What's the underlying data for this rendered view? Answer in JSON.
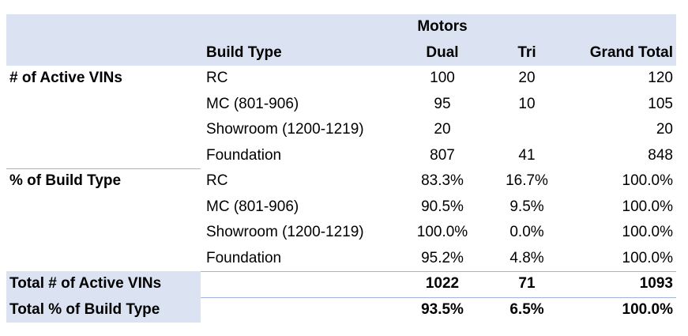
{
  "header": {
    "motors_label": "Motors",
    "build_type_label": "Build Type",
    "col_dual": "Dual",
    "col_tri": "Tri",
    "col_grand_total": "Grand Total"
  },
  "groups": [
    {
      "label": "# of Active VINs",
      "rows": [
        {
          "build_type": "RC",
          "dual": "100",
          "tri": "20",
          "total": "120"
        },
        {
          "build_type": "MC (801-906)",
          "dual": "95",
          "tri": "10",
          "total": "105"
        },
        {
          "build_type": "Showroom (1200-1219)",
          "dual": "20",
          "tri": "",
          "total": "20"
        },
        {
          "build_type": "Foundation",
          "dual": "807",
          "tri": "41",
          "total": "848"
        }
      ]
    },
    {
      "label": "% of Build Type",
      "rows": [
        {
          "build_type": "RC",
          "dual": "83.3%",
          "tri": "16.7%",
          "total": "100.0%"
        },
        {
          "build_type": "MC (801-906)",
          "dual": "90.5%",
          "tri": "9.5%",
          "total": "100.0%"
        },
        {
          "build_type": "Showroom (1200-1219)",
          "dual": "100.0%",
          "tri": "0.0%",
          "total": "100.0%"
        },
        {
          "build_type": "Foundation",
          "dual": "95.2%",
          "tri": "4.8%",
          "total": "100.0%"
        }
      ]
    }
  ],
  "totals": [
    {
      "label": "Total # of Active VINs",
      "dual": "1022",
      "tri": "71",
      "total": "1093"
    },
    {
      "label": "Total % of Build Type",
      "dual": "93.5%",
      "tri": "6.5%",
      "total": "100.0%"
    }
  ],
  "colors": {
    "header_fill": "#dbe3f3",
    "separator": "#9fb4d8"
  }
}
